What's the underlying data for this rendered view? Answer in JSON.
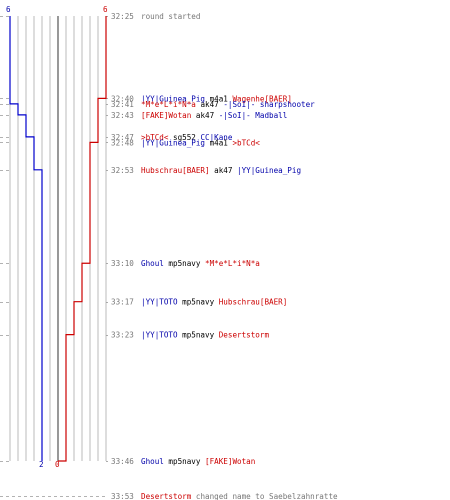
{
  "chart_data": {
    "type": "line",
    "title": "",
    "xlabel": "",
    "ylabel": "",
    "y_start_values": {
      "blue": 6,
      "red": 6
    },
    "y_end_values": {
      "blue": 2,
      "red": 0
    },
    "colors": {
      "blue": "#0000cc",
      "red": "#cc0000",
      "grid": "#bbbbbb",
      "guide": "#999999",
      "timeline": "#777777"
    },
    "series": [
      {
        "color": "#0000cc",
        "x": [
          "32:25",
          "32:41",
          "32:43",
          "32:47",
          "32:53",
          "33:46"
        ],
        "values": [
          6,
          5,
          4,
          3,
          2,
          2
        ]
      },
      {
        "color": "#cc0000",
        "x": [
          "32:25",
          "32:40",
          "32:48",
          "33:10",
          "33:17",
          "33:23",
          "33:46"
        ],
        "values": [
          6,
          5,
          4,
          3,
          2,
          1,
          0
        ]
      }
    ]
  },
  "events": [
    {
      "time": "32:25",
      "parts": [
        {
          "text": "round started",
          "color": "note"
        }
      ]
    },
    {
      "time": "32:40",
      "parts": [
        {
          "text": "|YY|Guinea_Pig",
          "color": "blue"
        },
        {
          "text": " m4a1 ",
          "color": "black"
        },
        {
          "text": "Wagenhe[BAER]",
          "color": "red"
        }
      ]
    },
    {
      "time": "32:41",
      "parts": [
        {
          "text": "*M*e*L*i*N*a",
          "color": "red"
        },
        {
          "text": " ak47 ",
          "color": "black"
        },
        {
          "text": "-|SoI|- sharpshooter",
          "color": "blue"
        }
      ]
    },
    {
      "time": "32:43",
      "parts": [
        {
          "text": "[FAKE]Wotan",
          "color": "red"
        },
        {
          "text": " ak47 ",
          "color": "black"
        },
        {
          "text": "-|SoI|- Madball",
          "color": "blue"
        }
      ]
    },
    {
      "time": "32:47",
      "parts": [
        {
          "text": ">bTCd<",
          "color": "red"
        },
        {
          "text": " sg552 ",
          "color": "black"
        },
        {
          "text": "CC|Kane",
          "color": "blue"
        }
      ]
    },
    {
      "time": "32:48",
      "parts": [
        {
          "text": "|YY|Guinea_Pig",
          "color": "blue"
        },
        {
          "text": " m4a1 ",
          "color": "black"
        },
        {
          "text": ">bTCd<",
          "color": "red"
        }
      ]
    },
    {
      "time": "32:53",
      "parts": [
        {
          "text": "Hubschrau[BAER]",
          "color": "red"
        },
        {
          "text": " ak47 ",
          "color": "black"
        },
        {
          "text": "|YY|Guinea_Pig",
          "color": "blue"
        }
      ]
    },
    {
      "time": "33:10",
      "parts": [
        {
          "text": "Ghoul",
          "color": "blue"
        },
        {
          "text": " mp5navy ",
          "color": "black"
        },
        {
          "text": "*M*e*L*i*N*a",
          "color": "red"
        }
      ]
    },
    {
      "time": "33:17",
      "parts": [
        {
          "text": "|YY|TOTO",
          "color": "blue"
        },
        {
          "text": " mp5navy ",
          "color": "black"
        },
        {
          "text": "Hubschrau[BAER]",
          "color": "red"
        }
      ]
    },
    {
      "time": "33:23",
      "parts": [
        {
          "text": "|YY|TOTO",
          "color": "blue"
        },
        {
          "text": " mp5navy ",
          "color": "black"
        },
        {
          "text": "Desertstorm",
          "color": "red"
        }
      ]
    },
    {
      "time": "33:46",
      "parts": [
        {
          "text": "Ghoul",
          "color": "blue"
        },
        {
          "text": " mp5navy ",
          "color": "black"
        },
        {
          "text": "[FAKE]Wotan",
          "color": "red"
        }
      ]
    },
    {
      "time": "33:53",
      "parts": [
        {
          "text": "Desertstorm",
          "color": "red"
        },
        {
          "text": " changed name to Saebelzahnratte",
          "color": "note"
        }
      ]
    }
  ]
}
